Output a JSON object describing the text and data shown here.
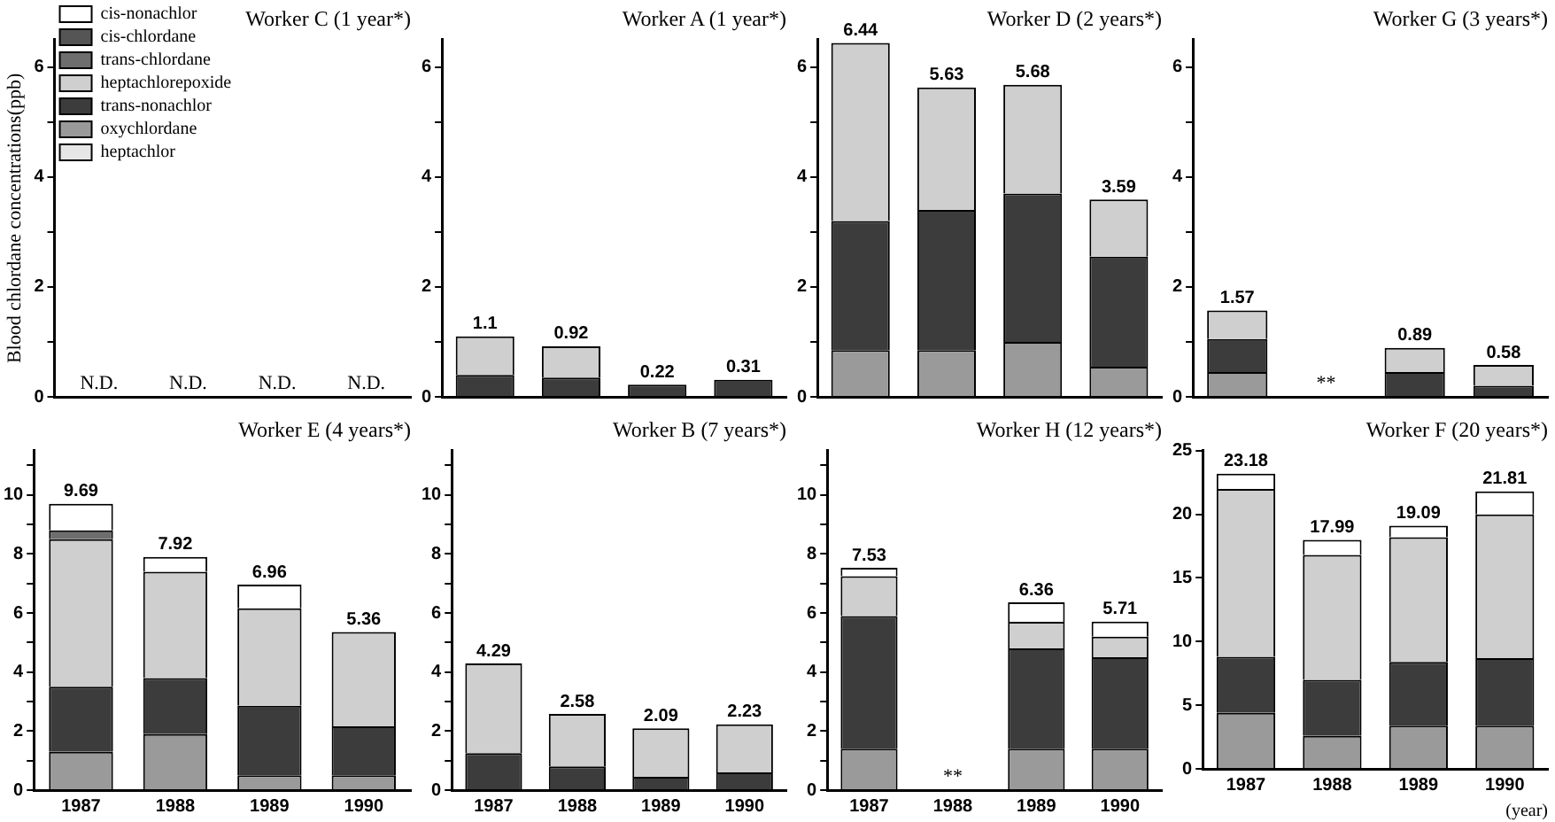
{
  "chart_data": [
    {
      "type": "bar",
      "title": "Worker C (1 year*)",
      "ylabel": "Blood chlordane concentrations(ppb)",
      "categories": [
        "1987",
        "1988",
        "1989",
        "1990"
      ],
      "stacked": true,
      "ylim": [
        0,
        6.5
      ],
      "yticks": [
        0,
        {
          "value": 1,
          "label": null
        },
        2,
        {
          "value": 3,
          "label": null
        },
        4,
        {
          "value": 5,
          "label": null
        },
        6
      ],
      "tick_labels": "y",
      "grid": false,
      "legend": "top left",
      "annotations": [
        "N.D.",
        "N.D.",
        "N.D.",
        "N.D."
      ],
      "series": [
        {
          "name": "heptachlor",
          "color": "#e6e6e6",
          "values": [
            null,
            null,
            null,
            null
          ]
        },
        {
          "name": "oxychlordane",
          "color": "#9a9a9a",
          "values": [
            null,
            null,
            null,
            null
          ]
        },
        {
          "name": "trans-nonachlor",
          "color": "#3c3c3c",
          "values": [
            null,
            null,
            null,
            null
          ]
        },
        {
          "name": "heptachlorepoxide",
          "color": "#cfcfcf",
          "values": [
            null,
            null,
            null,
            null
          ]
        },
        {
          "name": "trans-chlordane",
          "color": "#6e6e6e",
          "values": [
            null,
            null,
            null,
            null
          ]
        },
        {
          "name": "cis-chlordane",
          "color": "#555555",
          "values": [
            null,
            null,
            null,
            null
          ]
        },
        {
          "name": "cis-nonachlor",
          "color": "#ffffff",
          "values": [
            null,
            null,
            null,
            null
          ]
        }
      ]
    },
    {
      "type": "bar",
      "title": "Worker A (1 year*)",
      "categories": [
        "1987",
        "1988",
        "1989",
        "1990"
      ],
      "stacked": true,
      "ylim": [
        0,
        6.5
      ],
      "yticks": [
        0,
        {
          "value": 1,
          "label": null
        },
        2,
        {
          "value": 3,
          "label": null
        },
        4,
        {
          "value": 5,
          "label": null
        },
        6
      ],
      "tick_labels": "y",
      "grid": false,
      "totals": [
        "1.1",
        "0.92",
        "0.22",
        "0.31"
      ],
      "series": [
        {
          "color": "#3c3c3c",
          "values": [
            0.4,
            0.35,
            0.22,
            0.31
          ]
        },
        {
          "color": "#cfcfcf",
          "values": [
            0.7,
            0.57,
            null,
            null
          ]
        }
      ]
    },
    {
      "type": "bar",
      "title": "Worker D (2 years*)",
      "categories": [
        "1987",
        "1988",
        "1989",
        "1990"
      ],
      "stacked": true,
      "ylim": [
        0,
        6.5
      ],
      "yticks": [
        0,
        {
          "value": 1,
          "label": null
        },
        2,
        {
          "value": 3,
          "label": null
        },
        4,
        {
          "value": 5,
          "label": null
        },
        6
      ],
      "tick_labels": "y",
      "grid": false,
      "totals": [
        "6.44",
        "5.63",
        "5.68",
        "3.59"
      ],
      "series": [
        {
          "color": "#9a9a9a",
          "values": [
            0.85,
            0.85,
            1.0,
            0.55
          ]
        },
        {
          "color": "#3c3c3c",
          "values": [
            2.35,
            2.55,
            2.7,
            2.0
          ]
        },
        {
          "color": "#cfcfcf",
          "values": [
            3.24,
            2.23,
            1.98,
            1.04
          ]
        }
      ]
    },
    {
      "type": "bar",
      "title": "Worker G (3 years*)",
      "categories": [
        "1987",
        "1988",
        "1989",
        "1990"
      ],
      "stacked": true,
      "ylim": [
        0,
        6.5
      ],
      "yticks": [
        0,
        {
          "value": 1,
          "label": null
        },
        2,
        {
          "value": 3,
          "label": null
        },
        4,
        {
          "value": 5,
          "label": null
        },
        6
      ],
      "tick_labels": "y",
      "grid": false,
      "totals": [
        "1.57",
        null,
        "0.89",
        "0.58"
      ],
      "annotations": [
        "**"
      ],
      "series": [
        {
          "color": "#9a9a9a",
          "values": [
            0.45,
            null,
            null,
            null
          ]
        },
        {
          "color": "#3c3c3c",
          "values": [
            0.6,
            null,
            0.45,
            0.2
          ]
        },
        {
          "color": "#cfcfcf",
          "values": [
            0.52,
            null,
            0.44,
            0.38
          ]
        }
      ]
    },
    {
      "type": "bar",
      "title": "Worker E (4 years*)",
      "categories": [
        "1987",
        "1988",
        "1989",
        "1990"
      ],
      "stacked": true,
      "ylim": [
        0,
        11.5
      ],
      "yticks": [
        0,
        {
          "value": 1,
          "label": null
        },
        2,
        {
          "value": 3,
          "label": null
        },
        4,
        {
          "value": 5,
          "label": null
        },
        6,
        {
          "value": 7,
          "label": null
        },
        8,
        {
          "value": 9,
          "label": null
        },
        10,
        {
          "value": 11,
          "label": null
        }
      ],
      "grid": false,
      "totals": [
        "9.69",
        "7.92",
        "6.96",
        "5.36"
      ],
      "series": [
        {
          "color": "#9a9a9a",
          "values": [
            1.3,
            1.9,
            0.5,
            0.5
          ]
        },
        {
          "color": "#3c3c3c",
          "values": [
            2.2,
            1.9,
            2.36,
            1.66
          ]
        },
        {
          "color": "#cfcfcf",
          "values": [
            5.0,
            3.6,
            3.3,
            3.2
          ]
        },
        {
          "color": "#6e6e6e",
          "values": [
            0.3,
            null,
            null,
            null
          ]
        },
        {
          "color": "#ffffff",
          "values": [
            0.9,
            0.5,
            0.8,
            null
          ]
        }
      ]
    },
    {
      "type": "bar",
      "title": "Worker B (7 years*)",
      "categories": [
        "1987",
        "1988",
        "1989",
        "1990"
      ],
      "stacked": true,
      "ylim": [
        0,
        11.5
      ],
      "yticks": [
        0,
        {
          "value": 1,
          "label": null
        },
        2,
        {
          "value": 3,
          "label": null
        },
        4,
        {
          "value": 5,
          "label": null
        },
        6,
        {
          "value": 7,
          "label": null
        },
        8,
        {
          "value": 9,
          "label": null
        },
        10,
        {
          "value": 11,
          "label": null
        }
      ],
      "grid": false,
      "totals": [
        "4.29",
        "2.58",
        "2.09",
        "2.23"
      ],
      "series": [
        {
          "color": "#3c3c3c",
          "values": [
            1.25,
            0.8,
            0.45,
            0.6
          ]
        },
        {
          "color": "#cfcfcf",
          "values": [
            3.04,
            1.78,
            1.64,
            1.63
          ]
        }
      ]
    },
    {
      "type": "bar",
      "title": "Worker H (12 years*)",
      "categories": [
        "1987",
        "1988",
        "1989",
        "1990"
      ],
      "stacked": true,
      "ylim": [
        0,
        11.5
      ],
      "yticks": [
        0,
        {
          "value": 1,
          "label": null
        },
        2,
        {
          "value": 3,
          "label": null
        },
        4,
        {
          "value": 5,
          "label": null
        },
        6,
        {
          "value": 7,
          "label": null
        },
        8,
        {
          "value": 9,
          "label": null
        },
        10,
        {
          "value": 11,
          "label": null
        }
      ],
      "grid": false,
      "totals": [
        "7.53",
        null,
        "6.36",
        "5.71"
      ],
      "annotations": [
        "**"
      ],
      "series": [
        {
          "color": "#9a9a9a",
          "values": [
            1.4,
            null,
            1.4,
            1.4
          ]
        },
        {
          "color": "#3c3c3c",
          "values": [
            4.5,
            null,
            3.4,
            3.1
          ]
        },
        {
          "color": "#cfcfcf",
          "values": [
            1.35,
            null,
            0.9,
            0.7
          ]
        },
        {
          "color": "#ffffff",
          "values": [
            0.28,
            null,
            0.66,
            0.51
          ]
        }
      ]
    },
    {
      "type": "bar",
      "title": "Worker F (20 years*)",
      "xlabel": "(year)",
      "categories": [
        "1987",
        "1988",
        "1989",
        "1990"
      ],
      "stacked": true,
      "ylim": [
        0,
        25
      ],
      "yticks": [
        0,
        5,
        10,
        15,
        20,
        25
      ],
      "grid": false,
      "totals": [
        "23.18",
        "17.99",
        "19.09",
        "21.81"
      ],
      "series": [
        {
          "color": "#9a9a9a",
          "values": [
            4.4,
            2.6,
            3.4,
            3.4
          ]
        },
        {
          "color": "#3c3c3c",
          "values": [
            4.4,
            4.4,
            5.0,
            5.3
          ]
        },
        {
          "color": "#cfcfcf",
          "values": [
            13.2,
            9.8,
            9.8,
            11.3
          ]
        },
        {
          "color": "#ffffff",
          "values": [
            1.2,
            1.2,
            0.9,
            1.8
          ]
        }
      ]
    }
  ]
}
